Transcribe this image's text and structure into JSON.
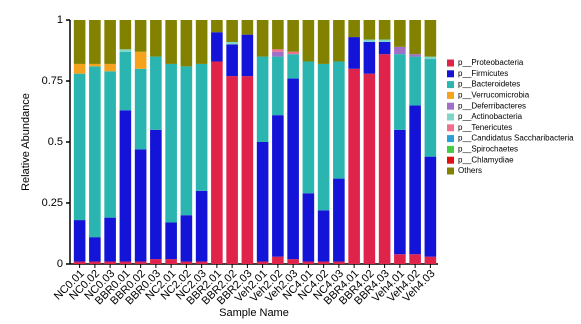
{
  "chart_data": {
    "type": "bar",
    "stacked": true,
    "x_label": "Sample Name",
    "y_label": "Relative Abundance",
    "categories": [
      "NC0.01",
      "NC0.02",
      "NC0.03",
      "BBR0.01",
      "BBR0.02",
      "BBR0.03",
      "NC2.01",
      "NC2.02",
      "NC2.03",
      "BBR2.01",
      "BBR2.02",
      "BBR2.03",
      "Veh2.01",
      "Veh2.02",
      "Veh2.03",
      "NC4.01",
      "NC4.02",
      "NC4.03",
      "BBR4.01",
      "BBR4.02",
      "BBR4.03",
      "Veh4.01",
      "Veh4.02",
      "Veh4.03"
    ],
    "ylim": [
      0,
      1
    ],
    "yticks": [
      0,
      0.25,
      0.5,
      0.75,
      1
    ],
    "grid": false,
    "legend": "right",
    "series": [
      {
        "name": "p__Proteobacteria",
        "color": "#e0234a",
        "values": [
          0.01,
          0.01,
          0.01,
          0.01,
          0.01,
          0.02,
          0.02,
          0.01,
          0.01,
          0.83,
          0.77,
          0.77,
          0.01,
          0.03,
          0.02,
          0.01,
          0.01,
          0.01,
          0.8,
          0.78,
          0.86,
          0.04,
          0.04,
          0.03
        ]
      },
      {
        "name": "p__Firmicutes",
        "color": "#1414d8",
        "values": [
          0.17,
          0.1,
          0.18,
          0.62,
          0.46,
          0.53,
          0.15,
          0.19,
          0.29,
          0.12,
          0.13,
          0.17,
          0.49,
          0.58,
          0.74,
          0.28,
          0.21,
          0.34,
          0.13,
          0.13,
          0.05,
          0.51,
          0.61,
          0.41
        ]
      },
      {
        "name": "p__Bacteroidetes",
        "color": "#2ab5b0",
        "values": [
          0.6,
          0.7,
          0.6,
          0.24,
          0.33,
          0.3,
          0.65,
          0.61,
          0.52,
          0,
          0,
          0,
          0.35,
          0.24,
          0.1,
          0.54,
          0.6,
          0.48,
          0,
          0,
          0,
          0.31,
          0.2,
          0.4
        ]
      },
      {
        "name": "p__Verrucomicrobia",
        "color": "#f5a21f",
        "values": [
          0.04,
          0.01,
          0.03,
          0,
          0.07,
          0,
          0,
          0,
          0,
          0,
          0,
          0,
          0,
          0,
          0,
          0,
          0,
          0,
          0,
          0,
          0,
          0,
          0,
          0
        ]
      },
      {
        "name": "p__Deferribacteres",
        "color": "#a070c8",
        "values": [
          0,
          0,
          0,
          0,
          0,
          0,
          0,
          0,
          0,
          0,
          0,
          0,
          0,
          0.02,
          0,
          0,
          0,
          0,
          0,
          0,
          0,
          0.03,
          0.01,
          0
        ]
      },
      {
        "name": "p__Actinobacteria",
        "color": "#7fd6c8",
        "values": [
          0,
          0,
          0,
          0.01,
          0,
          0,
          0,
          0,
          0,
          0,
          0.01,
          0,
          0,
          0,
          0,
          0,
          0,
          0,
          0,
          0.01,
          0.01,
          0,
          0,
          0.01
        ]
      },
      {
        "name": "p__Tenericutes",
        "color": "#f07090",
        "values": [
          0,
          0,
          0,
          0,
          0,
          0,
          0,
          0,
          0,
          0,
          0,
          0,
          0,
          0.01,
          0.01,
          0,
          0,
          0,
          0,
          0,
          0,
          0,
          0,
          0
        ]
      },
      {
        "name": "p__Candidatus Saccharibacteria",
        "color": "#2a9fd8",
        "values": [
          0,
          0,
          0,
          0,
          0,
          0,
          0,
          0,
          0,
          0,
          0,
          0,
          0,
          0,
          0,
          0,
          0,
          0,
          0,
          0,
          0,
          0,
          0,
          0
        ]
      },
      {
        "name": "p__Spirochaetes",
        "color": "#44cc44",
        "values": [
          0,
          0,
          0,
          0,
          0,
          0,
          0,
          0,
          0,
          0,
          0,
          0,
          0,
          0,
          0,
          0,
          0,
          0,
          0,
          0,
          0,
          0,
          0,
          0
        ]
      },
      {
        "name": "p__Chlamydiae",
        "color": "#e01010",
        "values": [
          0,
          0,
          0,
          0,
          0,
          0,
          0,
          0,
          0,
          0,
          0,
          0,
          0,
          0,
          0,
          0,
          0,
          0,
          0,
          0,
          0,
          0,
          0,
          0
        ]
      },
      {
        "name": "Others",
        "color": "#828200",
        "values": [
          0.18,
          0.18,
          0.18,
          0.12,
          0.13,
          0.15,
          0.18,
          0.19,
          0.18,
          0.05,
          0.09,
          0.06,
          0.15,
          0.12,
          0.13,
          0.17,
          0.18,
          0.17,
          0.07,
          0.08,
          0.08,
          0.11,
          0.14,
          0.15
        ]
      }
    ]
  }
}
